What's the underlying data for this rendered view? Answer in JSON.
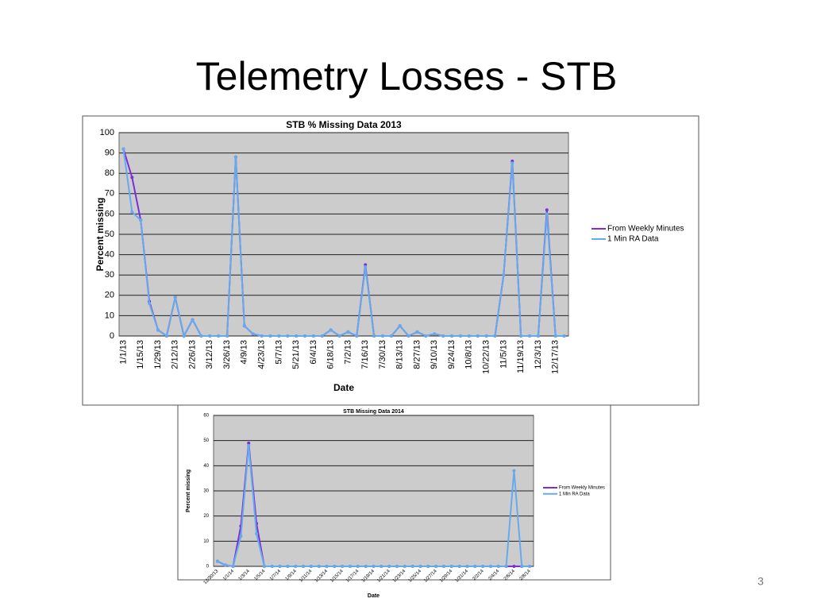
{
  "title": "Telemetry Losses - STB",
  "page_number": "3",
  "chart_data": [
    {
      "type": "line",
      "title": "STB % Missing Data 2013",
      "xlabel": "Date",
      "ylabel": "Percent missing",
      "categories": [
        "1/1/13",
        null,
        "1/15/13",
        null,
        "1/29/13",
        null,
        "2/12/13",
        null,
        "2/26/13",
        null,
        "3/12/13",
        null,
        "3/26/13",
        null,
        "4/9/13",
        null,
        "4/23/13",
        null,
        "5/7/13",
        null,
        "5/21/13",
        null,
        "6/4/13",
        null,
        "6/18/13",
        null,
        "7/2/13",
        null,
        "7/16/13",
        null,
        "7/30/13",
        null,
        "8/13/13",
        null,
        "8/27/13",
        null,
        "9/10/13",
        null,
        "9/24/13",
        null,
        "10/8/13",
        null,
        "10/22/13",
        null,
        "11/5/13",
        null,
        "11/19/13",
        null,
        "12/3/13",
        null,
        "12/17/13",
        null
      ],
      "series": [
        {
          "name": "From Weekly Minutes",
          "color": "#7b2fd6",
          "values": [
            92,
            78,
            57,
            17,
            3,
            0,
            19,
            0,
            8,
            0,
            0,
            0,
            0,
            88,
            5,
            1,
            0,
            0,
            0,
            0,
            0,
            0,
            0,
            0,
            3,
            0,
            2,
            0,
            35,
            0,
            0,
            0,
            5,
            0,
            2,
            0,
            1,
            0,
            0,
            0,
            0,
            0,
            0,
            0,
            30,
            86,
            0,
            0,
            0,
            62,
            0,
            0
          ]
        },
        {
          "name": "1 Min RA Data",
          "color": "#66aaee",
          "values": [
            92,
            61,
            57,
            16,
            3,
            0,
            19,
            0,
            8,
            0,
            0,
            0,
            0,
            88,
            5,
            1,
            0,
            0,
            0,
            0,
            0,
            0,
            0,
            0,
            3,
            0,
            2,
            0,
            34,
            0,
            0,
            0,
            5,
            0,
            2,
            0,
            1,
            0,
            0,
            0,
            0,
            0,
            0,
            0,
            30,
            85,
            0,
            0,
            0,
            60,
            0,
            0
          ]
        }
      ],
      "ylim": [
        0,
        100
      ],
      "yticks": [
        0,
        10,
        20,
        30,
        40,
        50,
        60,
        70,
        80,
        90,
        100
      ],
      "grid": true,
      "legend": "right"
    },
    {
      "type": "line",
      "title": "STB Missing Data 2014",
      "xlabel": "Date",
      "ylabel": "Percent missing",
      "categories": [
        "12/30/13",
        null,
        "1/1/14",
        null,
        "1/3/14",
        null,
        "1/5/14",
        null,
        "1/7/14",
        null,
        "1/9/14",
        null,
        "1/11/14",
        null,
        "1/13/14",
        null,
        "1/15/14",
        null,
        "1/17/14",
        null,
        "1/19/14",
        null,
        "1/21/14",
        null,
        "1/23/14",
        null,
        "1/25/14",
        null,
        "1/27/14",
        null,
        "1/29/14",
        null,
        "1/31/14",
        null,
        "2/2/14",
        null,
        "2/4/14",
        null,
        "2/6/14",
        null,
        "2/8/14"
      ],
      "series": [
        {
          "name": "From Weekly Minutes",
          "color": "#7b2fd6",
          "values": [
            2,
            0.5,
            0,
            16,
            49,
            17,
            0,
            0,
            0,
            0,
            0,
            0,
            0,
            0,
            0,
            0,
            0,
            0,
            0,
            0,
            0,
            0,
            0,
            0,
            0,
            0,
            0,
            0,
            0,
            0,
            0,
            0,
            0,
            0,
            0,
            0,
            0,
            0,
            0,
            0,
            0
          ]
        },
        {
          "name": "1 Min RA Data",
          "color": "#66aaee",
          "values": [
            2,
            0.5,
            0,
            12,
            48,
            13,
            0,
            0,
            0,
            0,
            0,
            0,
            0,
            0,
            0,
            0,
            0,
            0,
            0,
            0,
            0,
            0,
            0,
            0,
            0,
            0,
            0,
            0,
            0,
            0,
            0,
            0,
            0,
            0,
            0,
            0,
            0,
            0,
            38,
            0,
            0
          ]
        }
      ],
      "ylim": [
        0,
        60
      ],
      "yticks": [
        0,
        10,
        20,
        30,
        40,
        50,
        60
      ],
      "grid": true,
      "legend": "right"
    }
  ]
}
